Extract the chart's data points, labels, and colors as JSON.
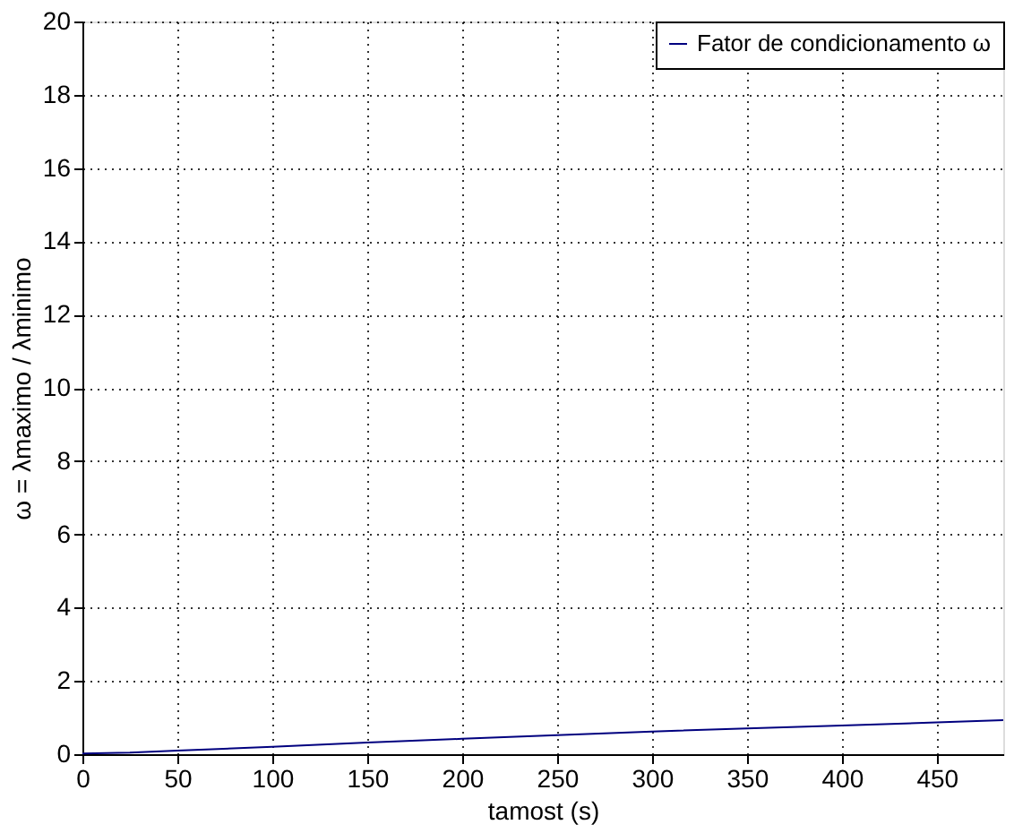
{
  "chart_data": {
    "type": "line",
    "xlabel": "tamost (s)",
    "ylabel": "ω = λmaximo / λminimo",
    "x": [
      0,
      25,
      50,
      100,
      150,
      200,
      250,
      300,
      350,
      400,
      450,
      485
    ],
    "series": [
      {
        "name": "Fator de condicionamento ω",
        "color": "#00007f",
        "values": [
          0.02,
          0.04,
          0.1,
          0.2,
          0.32,
          0.42,
          0.52,
          0.62,
          0.7,
          0.78,
          0.87,
          0.93
        ]
      }
    ],
    "xlim": [
      0,
      485
    ],
    "xticks": [
      0,
      50,
      100,
      150,
      200,
      250,
      300,
      350,
      400,
      450
    ],
    "ylim": [
      0,
      20
    ],
    "yticks": [
      0,
      2,
      4,
      6,
      8,
      10,
      12,
      14,
      16,
      18,
      20
    ],
    "grid": true,
    "legend": "top right",
    "line_style": "solid",
    "marker": "none"
  }
}
